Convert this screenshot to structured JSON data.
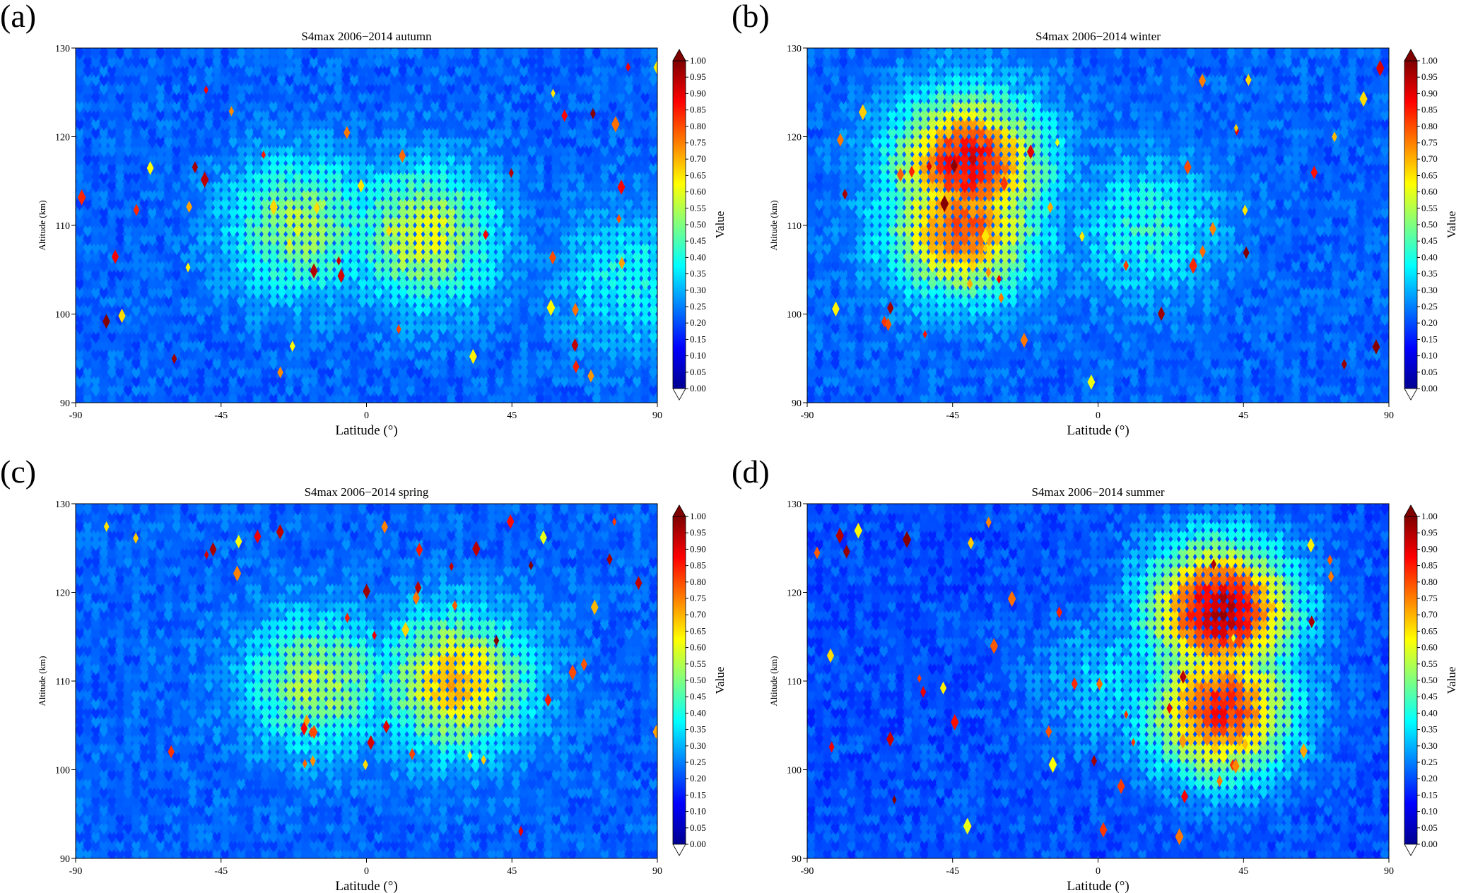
{
  "colorbar": {
    "label": "Value",
    "ticks": [
      "0.00",
      "0.05",
      "0.10",
      "0.15",
      "0.20",
      "0.25",
      "0.30",
      "0.35",
      "0.40",
      "0.45",
      "0.50",
      "0.55",
      "0.60",
      "0.65",
      "0.70",
      "0.75",
      "0.80",
      "0.85",
      "0.90",
      "0.95",
      "1.00"
    ],
    "colors": [
      "#00008f",
      "#0000ff",
      "#007fff",
      "#00ffff",
      "#7fff7f",
      "#ffff00",
      "#ff7f00",
      "#ff0000",
      "#7f0000"
    ],
    "range": [
      0,
      1
    ]
  },
  "chart_data": [
    {
      "panel_letter": "(a)",
      "type": "heatmap",
      "title": "S4max 2006−2014  autumn",
      "xlabel": "Latitude (°)",
      "ylabel": "Altitude (km)",
      "xlim": [
        -90,
        90
      ],
      "ylim": [
        90,
        130
      ],
      "xticks": [
        "-90",
        "-45",
        "0",
        "45",
        "90"
      ],
      "yticks": [
        "90",
        "100",
        "110",
        "120",
        "130"
      ],
      "zlabel": "Value",
      "background": 0.22,
      "hotspots": [
        {
          "lat": -20,
          "alt": 110,
          "value": 0.55
        },
        {
          "lat": 18,
          "alt": 109,
          "value": 0.6
        },
        {
          "lat": 82,
          "alt": 104,
          "value": 0.4
        }
      ]
    },
    {
      "panel_letter": "(b)",
      "type": "heatmap",
      "title": "S4max 2006−2014  winter",
      "xlabel": "Latitude (°)",
      "ylabel": "Altitude (km)",
      "xlim": [
        -90,
        90
      ],
      "ylim": [
        90,
        130
      ],
      "xticks": [
        "-90",
        "-45",
        "0",
        "45",
        "90"
      ],
      "yticks": [
        "90",
        "100",
        "110",
        "120",
        "130"
      ],
      "zlabel": "Value",
      "background": 0.22,
      "hotspots": [
        {
          "lat": -42,
          "alt": 110,
          "value": 0.8
        },
        {
          "lat": -40,
          "alt": 117,
          "value": 0.9
        },
        {
          "lat": 15,
          "alt": 110,
          "value": 0.42
        }
      ]
    },
    {
      "panel_letter": "(c)",
      "type": "heatmap",
      "title": "S4max 2006−2014  spring",
      "xlabel": "Latitude (°)",
      "ylabel": "Altitude (km)",
      "xlim": [
        -90,
        90
      ],
      "ylim": [
        90,
        130
      ],
      "xticks": [
        "-90",
        "-45",
        "0",
        "45",
        "90"
      ],
      "yticks": [
        "90",
        "100",
        "110",
        "120",
        "130"
      ],
      "zlabel": "Value",
      "background": 0.22,
      "hotspots": [
        {
          "lat": -15,
          "alt": 110,
          "value": 0.55
        },
        {
          "lat": 28,
          "alt": 110,
          "value": 0.7
        }
      ]
    },
    {
      "panel_letter": "(d)",
      "type": "heatmap",
      "title": "S4max 2006−2014  summer",
      "xlabel": "Latitude (°)",
      "ylabel": "Altitude (km)",
      "xlim": [
        -90,
        90
      ],
      "ylim": [
        90,
        130
      ],
      "xticks": [
        "-90",
        "-45",
        "0",
        "45",
        "90"
      ],
      "yticks": [
        "90",
        "100",
        "110",
        "120",
        "130"
      ],
      "zlabel": "Value",
      "background": 0.2,
      "hotspots": [
        {
          "lat": 38,
          "alt": 107,
          "value": 0.85
        },
        {
          "lat": 38,
          "alt": 118,
          "value": 0.95
        },
        {
          "lat": 5,
          "alt": 110,
          "value": 0.35
        }
      ]
    }
  ]
}
